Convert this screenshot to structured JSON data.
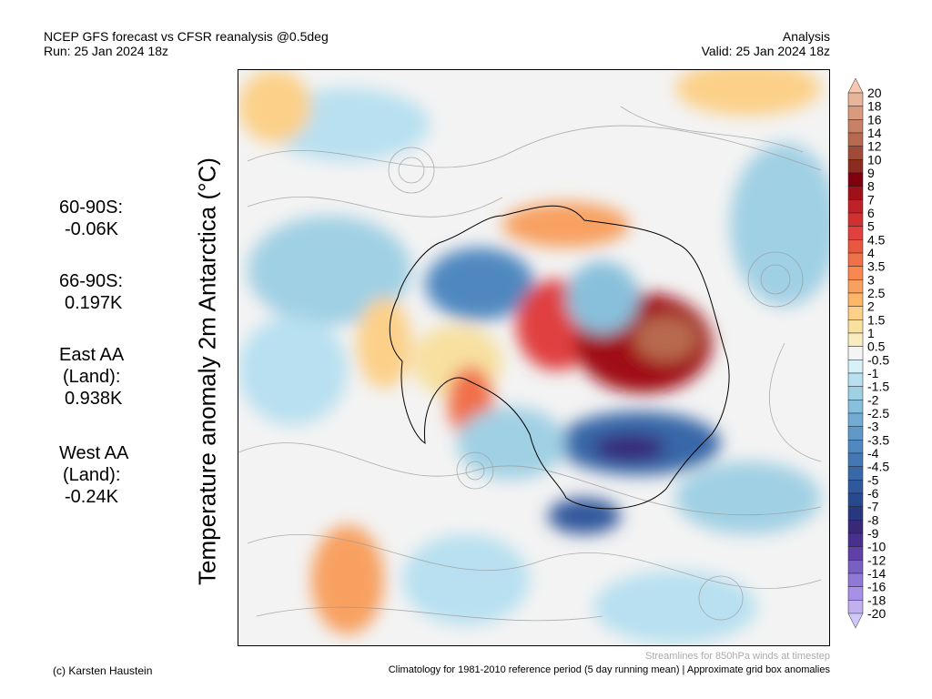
{
  "header": {
    "title_left_1": "NCEP GFS forecast vs CFSR reanalysis @0.5deg",
    "title_left_2": "Run: 25 Jan 2024 18z",
    "title_right_1": "Analysis",
    "title_right_2": "Valid: 25 Jan 2024 18z"
  },
  "ylabel": "Temperature anomaly 2m Antarctica (°C)",
  "stats": [
    {
      "label": "60-90S:",
      "value": "-0.06K"
    },
    {
      "label": "66-90S:",
      "value": "0.197K"
    },
    {
      "label": "East AA",
      "label2": "(Land):",
      "value": "0.938K"
    },
    {
      "label": "West AA",
      "label2": "(Land):",
      "value": "-0.24K"
    }
  ],
  "footer": {
    "credit": "(c) Karsten Haustein",
    "streamlines": "Streamlines for 850hPa winds at timestep",
    "climatology": "Climatology for 1981-2010 reference period (5 day running mean) | Approximate grid box anomalies"
  },
  "colorbar": {
    "labels": [
      "20",
      "18",
      "16",
      "14",
      "12",
      "10",
      "9",
      "8",
      "7",
      "6",
      "5",
      "4.5",
      "4",
      "3.5",
      "3",
      "2.5",
      "2",
      "1.5",
      "1",
      "0.5",
      "-0.5",
      "-1",
      "-1.5",
      "-2",
      "-2.5",
      "-3",
      "-3.5",
      "-4",
      "-4.5",
      "-5",
      "-6",
      "-7",
      "-8",
      "-9",
      "-10",
      "-12",
      "-14",
      "-16",
      "-18",
      "-20"
    ],
    "top_arrow_color": "#f8c8b0",
    "bottom_arrow_color": "#d0c8f8",
    "colors": [
      "#e8b49a",
      "#d99a80",
      "#c88066",
      "#b86a50",
      "#a04a38",
      "#8c2c20",
      "#800010",
      "#a01018",
      "#c02028",
      "#d03030",
      "#e04040",
      "#e85840",
      "#f07048",
      "#f88850",
      "#f8a060",
      "#fcb868",
      "#fcd088",
      "#f8e0a0",
      "#f8ecc0",
      "#f4f4f4",
      "#d8f0f8",
      "#b8e0f0",
      "#a0d0e4",
      "#88c0dc",
      "#70acd4",
      "#6098c8",
      "#5088c0",
      "#4478b4",
      "#3868a8",
      "#30589c",
      "#284890",
      "#283880",
      "#382878",
      "#483090",
      "#6040a8",
      "#7860c0",
      "#9078d8",
      "#a890e8",
      "#c0b0f0"
    ]
  }
}
